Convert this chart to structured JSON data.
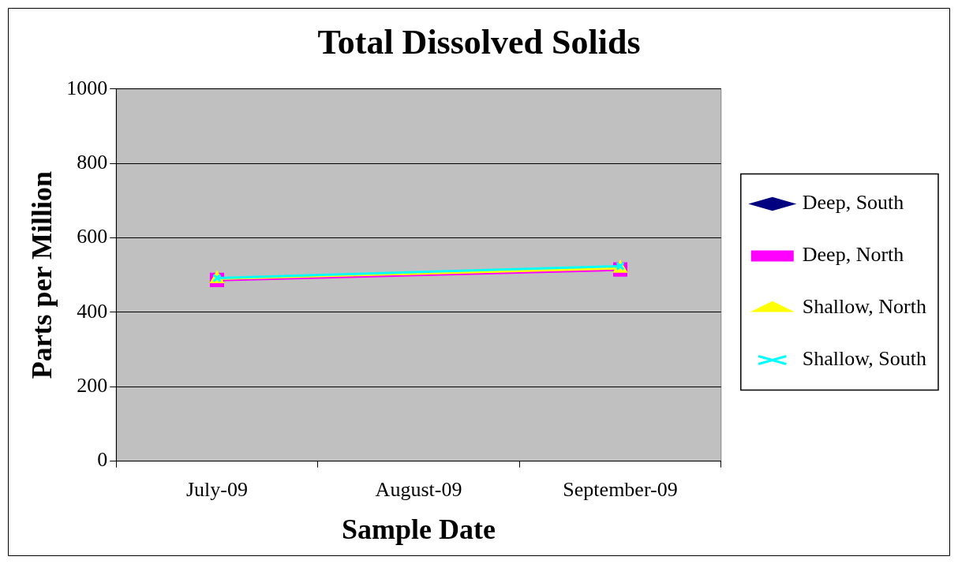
{
  "chart_data": {
    "type": "line",
    "title": "Total Dissolved Solids",
    "xlabel": "Sample Date",
    "ylabel": "Parts per Million",
    "categories": [
      "July-09",
      "August-09",
      "September-09"
    ],
    "series": [
      {
        "name": "Deep, South",
        "color": "#000080",
        "marker": "diamond",
        "values": [
          null,
          null,
          null
        ]
      },
      {
        "name": "Deep, North",
        "color": "#ff00ff",
        "marker": "square",
        "values": [
          487,
          null,
          515
        ]
      },
      {
        "name": "Shallow, North",
        "color": "#ffff00",
        "marker": "triangle",
        "values": [
          490,
          null,
          518
        ]
      },
      {
        "name": "Shallow, South",
        "color": "#00ffff",
        "marker": "cross",
        "values": [
          492,
          null,
          524
        ]
      }
    ],
    "ylim": [
      0,
      1000
    ],
    "yticks": [
      0,
      200,
      400,
      600,
      800,
      1000
    ],
    "grid": "y",
    "legend": "right"
  }
}
